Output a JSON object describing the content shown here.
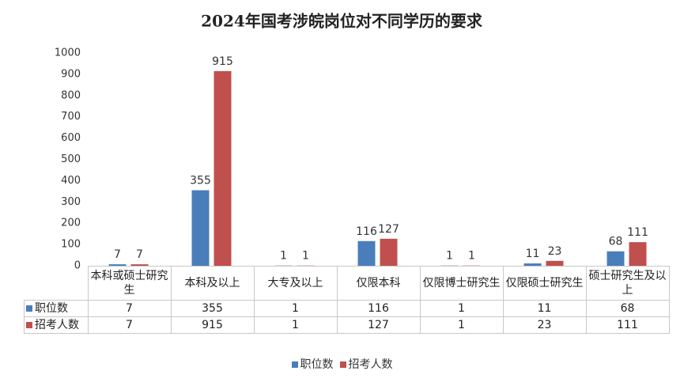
{
  "chart_data": {
    "type": "bar",
    "title": "2024年国考涉皖岗位对不同学历的要求",
    "categories": [
      "本科或硕士研究生",
      "本科及以上",
      "大专及以上",
      "仅限本科",
      "仅限博士研究生",
      "仅限硕士研究生",
      "硕士研究生及以上"
    ],
    "series": [
      {
        "name": "职位数",
        "color": "#4a7ebb",
        "values": [
          7,
          355,
          1,
          116,
          1,
          11,
          68
        ]
      },
      {
        "name": "招考人数",
        "color": "#c0504d",
        "values": [
          7,
          915,
          1,
          127,
          1,
          23,
          111
        ]
      }
    ],
    "ylim": [
      0,
      1000
    ],
    "yticks": [
      0,
      100,
      200,
      300,
      400,
      500,
      600,
      700,
      800,
      900,
      1000
    ],
    "legend": "bottom",
    "data_table": true
  }
}
